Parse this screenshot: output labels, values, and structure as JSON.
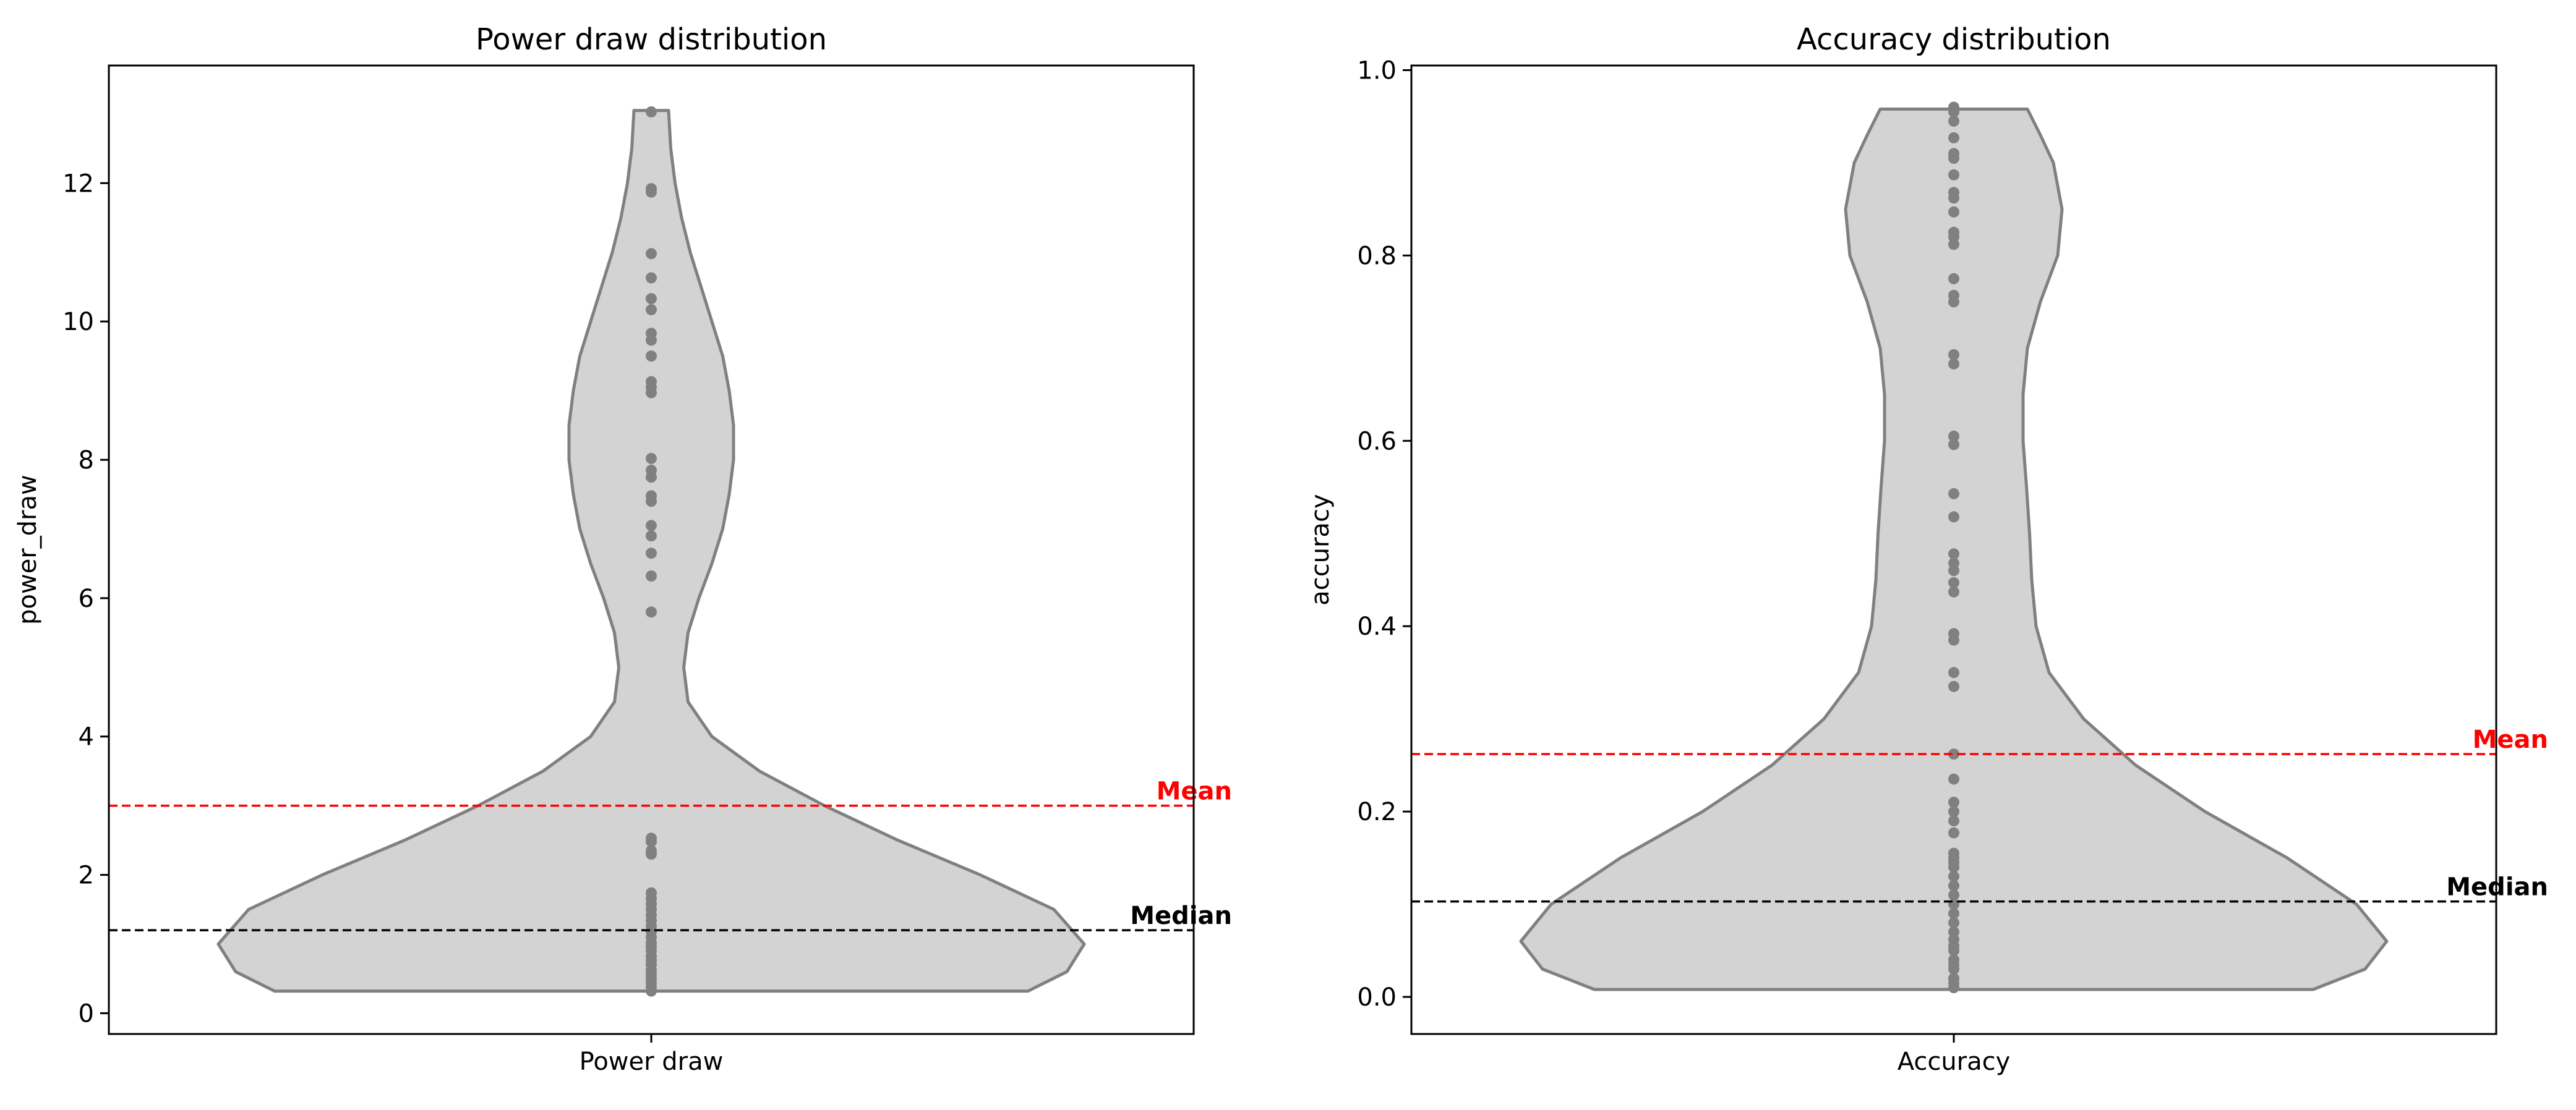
{
  "chart_data": [
    {
      "type": "violin",
      "title": "Power draw distribution",
      "xlabel": "",
      "ylabel": "power_draw",
      "categories": [
        "Power draw"
      ],
      "ylim": [
        -0.3,
        13.7
      ],
      "yticks": [
        0,
        2,
        4,
        6,
        8,
        10,
        12
      ],
      "grid": false,
      "violin_color": "#d3d3d3",
      "outline_color": "#808080",
      "point_color": "#808080",
      "violin_min": 0.32,
      "violin_max": 13.05,
      "violin_profile": [
        [
          0.32,
          0.87
        ],
        [
          0.6,
          0.96
        ],
        [
          1.0,
          1.0
        ],
        [
          1.5,
          0.93
        ],
        [
          2.0,
          0.76
        ],
        [
          2.5,
          0.57
        ],
        [
          3.0,
          0.4
        ],
        [
          3.5,
          0.25
        ],
        [
          4.0,
          0.14
        ],
        [
          4.5,
          0.085
        ],
        [
          5.0,
          0.075
        ],
        [
          5.5,
          0.085
        ],
        [
          6.0,
          0.11
        ],
        [
          6.5,
          0.14
        ],
        [
          7.0,
          0.165
        ],
        [
          7.5,
          0.18
        ],
        [
          8.0,
          0.19
        ],
        [
          8.5,
          0.19
        ],
        [
          9.0,
          0.18
        ],
        [
          9.5,
          0.165
        ],
        [
          10.0,
          0.14
        ],
        [
          10.5,
          0.115
        ],
        [
          11.0,
          0.09
        ],
        [
          11.5,
          0.07
        ],
        [
          12.0,
          0.055
        ],
        [
          12.5,
          0.045
        ],
        [
          13.05,
          0.04
        ]
      ],
      "points": [
        0.32,
        0.38,
        0.44,
        0.5,
        0.56,
        0.62,
        0.7,
        0.76,
        0.82,
        0.9,
        0.96,
        1.02,
        1.1,
        1.18,
        1.26,
        1.34,
        1.42,
        1.5,
        1.58,
        1.66,
        1.74,
        2.3,
        2.35,
        2.48,
        2.53,
        5.8,
        6.32,
        6.65,
        6.9,
        7.05,
        7.4,
        7.48,
        7.75,
        7.85,
        8.02,
        8.97,
        9.05,
        9.13,
        9.5,
        9.73,
        9.83,
        10.17,
        10.33,
        10.63,
        10.98,
        11.87,
        11.92,
        13.03
      ],
      "reference_lines": [
        {
          "label": "Mean",
          "value": 3.0,
          "color": "#ff0000"
        },
        {
          "label": "Median",
          "value": 1.2,
          "color": "#000000"
        }
      ]
    },
    {
      "type": "violin",
      "title": "Accuracy distribution",
      "xlabel": "",
      "ylabel": "accuracy",
      "categories": [
        "Accuracy"
      ],
      "ylim": [
        -0.04,
        1.005
      ],
      "yticks": [
        0.0,
        0.2,
        0.4,
        0.6,
        0.8,
        1.0
      ],
      "yticklabels": [
        "0.0",
        "0.2",
        "0.4",
        "0.6",
        "0.8",
        "1.0"
      ],
      "grid": false,
      "violin_color": "#d3d3d3",
      "outline_color": "#808080",
      "point_color": "#808080",
      "violin_min": 0.008,
      "violin_max": 0.958,
      "violin_profile": [
        [
          0.008,
          0.83
        ],
        [
          0.03,
          0.95
        ],
        [
          0.06,
          1.0
        ],
        [
          0.1,
          0.93
        ],
        [
          0.15,
          0.77
        ],
        [
          0.2,
          0.58
        ],
        [
          0.25,
          0.42
        ],
        [
          0.3,
          0.3
        ],
        [
          0.35,
          0.22
        ],
        [
          0.4,
          0.19
        ],
        [
          0.45,
          0.18
        ],
        [
          0.5,
          0.175
        ],
        [
          0.55,
          0.168
        ],
        [
          0.6,
          0.16
        ],
        [
          0.65,
          0.16
        ],
        [
          0.7,
          0.17
        ],
        [
          0.75,
          0.2
        ],
        [
          0.8,
          0.24
        ],
        [
          0.85,
          0.25
        ],
        [
          0.9,
          0.23
        ],
        [
          0.93,
          0.2
        ],
        [
          0.958,
          0.17
        ]
      ],
      "points": [
        0.01,
        0.015,
        0.02,
        0.03,
        0.035,
        0.04,
        0.05,
        0.055,
        0.062,
        0.07,
        0.08,
        0.09,
        0.1,
        0.11,
        0.12,
        0.13,
        0.14,
        0.145,
        0.15,
        0.155,
        0.177,
        0.19,
        0.2,
        0.21,
        0.235,
        0.262,
        0.335,
        0.35,
        0.385,
        0.392,
        0.437,
        0.447,
        0.46,
        0.468,
        0.478,
        0.518,
        0.543,
        0.596,
        0.605,
        0.683,
        0.693,
        0.75,
        0.757,
        0.775,
        0.812,
        0.82,
        0.825,
        0.847,
        0.862,
        0.868,
        0.887,
        0.905,
        0.91,
        0.927,
        0.945,
        0.955,
        0.96
      ],
      "reference_lines": [
        {
          "label": "Mean",
          "value": 0.262,
          "color": "#ff0000"
        },
        {
          "label": "Median",
          "value": 0.103,
          "color": "#000000"
        }
      ]
    }
  ]
}
